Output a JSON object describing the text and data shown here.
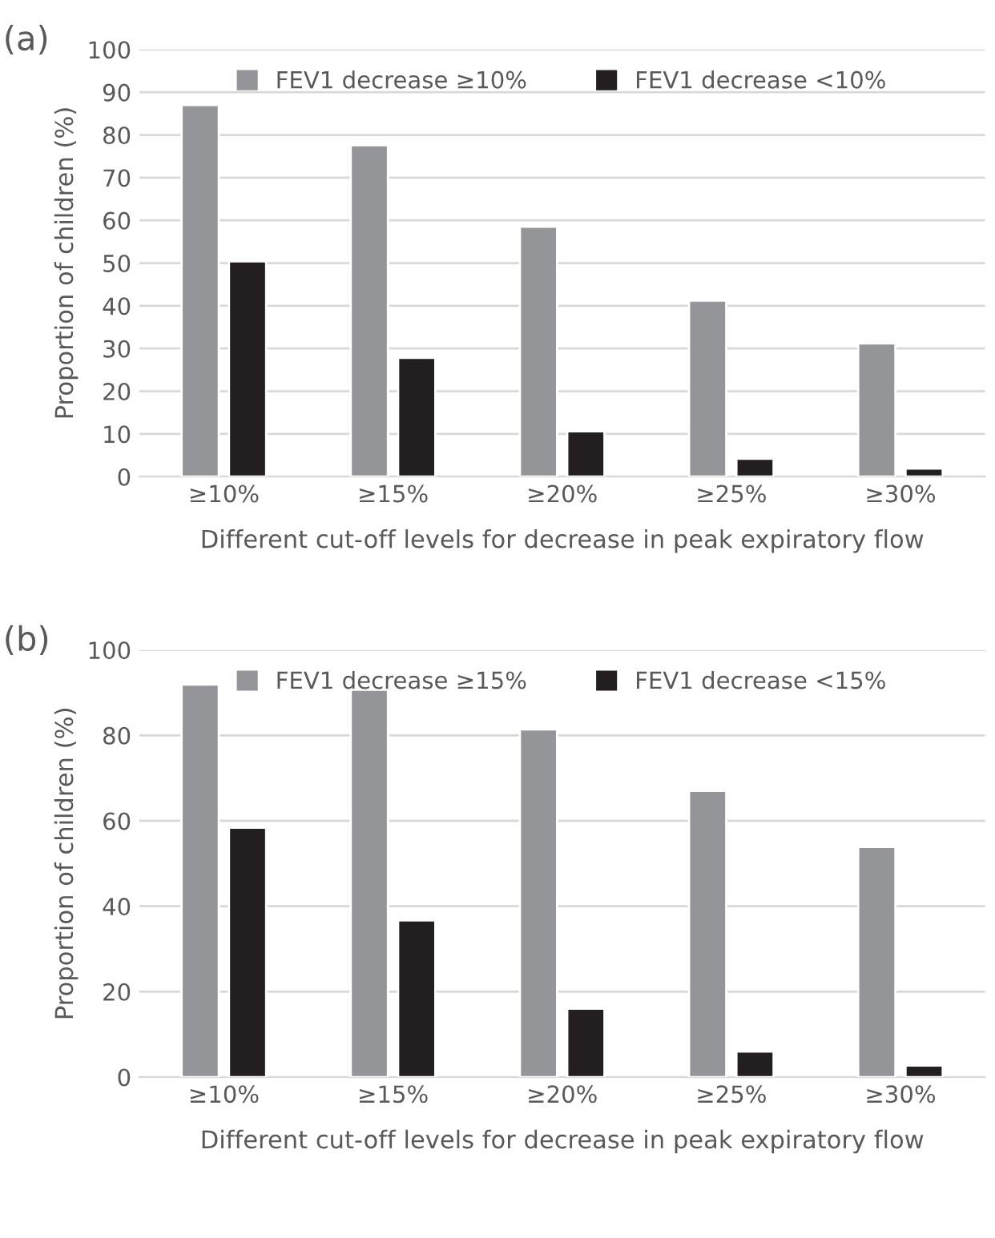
{
  "chart_data": [
    {
      "type": "bar",
      "title": "(a)",
      "xlabel": "Different cut-off levels for decrease in peak expiratory flow",
      "ylabel": "Proportion of children (%)",
      "categories": [
        "≥10%",
        "≥15%",
        "≥20%",
        "≥25%",
        "≥30%"
      ],
      "series": [
        {
          "name": "FEV1 decrease ≥10%",
          "color": "#939598",
          "values": [
            87,
            77.6,
            58.5,
            41.2,
            31.2
          ]
        },
        {
          "name": "FEV1 decrease <10%",
          "color": "#231f20",
          "values": [
            50.4,
            27.8,
            10.6,
            4.2,
            1.9
          ]
        }
      ],
      "ylim": [
        0,
        100
      ],
      "yticks": [
        0,
        10,
        20,
        30,
        40,
        50,
        60,
        70,
        80,
        90,
        100
      ],
      "grid": "y",
      "legend": "top"
    },
    {
      "type": "bar",
      "title": "(b)",
      "xlabel": "Different cut-off levels for decrease in peak expiratory flow",
      "ylabel": "Proportion of children (%)",
      "categories": [
        "≥10%",
        "≥15%",
        "≥20%",
        "≥25%",
        "≥30%"
      ],
      "series": [
        {
          "name": "FEV1 decrease ≥15%",
          "color": "#939598",
          "values": [
            91.9,
            90.7,
            81.4,
            67.0,
            53.9
          ]
        },
        {
          "name": "FEV1 decrease <15%",
          "color": "#231f20",
          "values": [
            58.4,
            36.7,
            16.0,
            6.0,
            2.7
          ]
        }
      ],
      "ylim": [
        0,
        100
      ],
      "yticks": [
        0,
        20,
        40,
        60,
        80,
        100
      ],
      "grid": "y",
      "legend": "top"
    }
  ]
}
